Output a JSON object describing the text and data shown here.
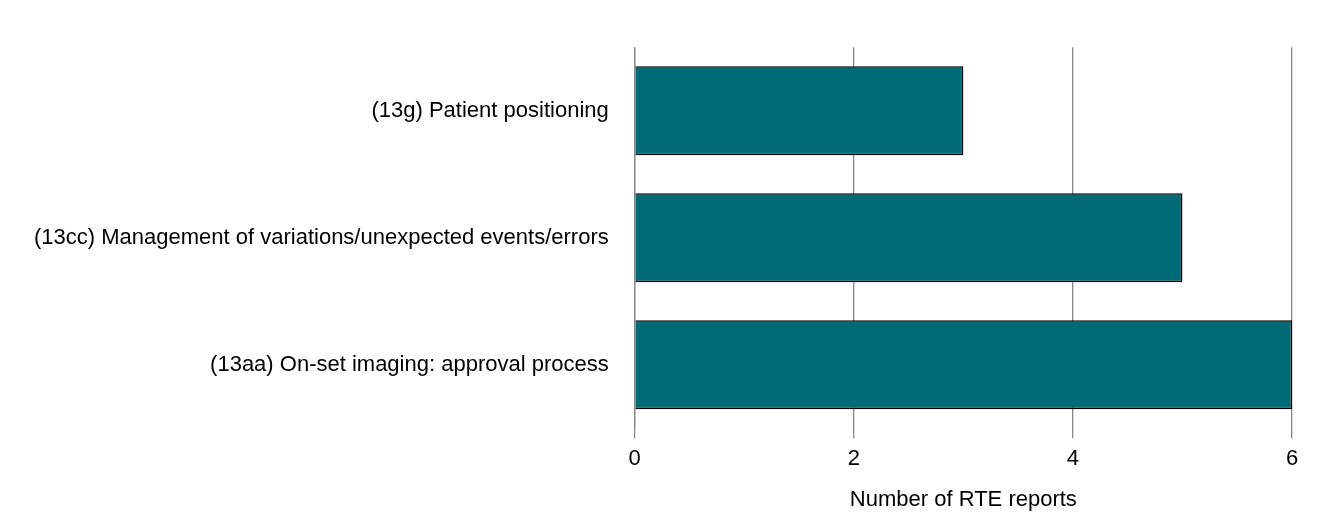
{
  "chart_data": {
    "type": "bar",
    "orientation": "horizontal",
    "categories": [
      "(13g) Patient positioning",
      "(13cc) Management of variations/unexpected events/errors",
      "(13aa) On-set imaging: approval process"
    ],
    "values": [
      3,
      5,
      6
    ],
    "color": "#006b77",
    "xlabel": "Number of RTE reports",
    "xlim": [
      0,
      6
    ],
    "xticks": [
      0,
      2,
      4,
      6
    ],
    "grid": "x",
    "legend": false
  }
}
